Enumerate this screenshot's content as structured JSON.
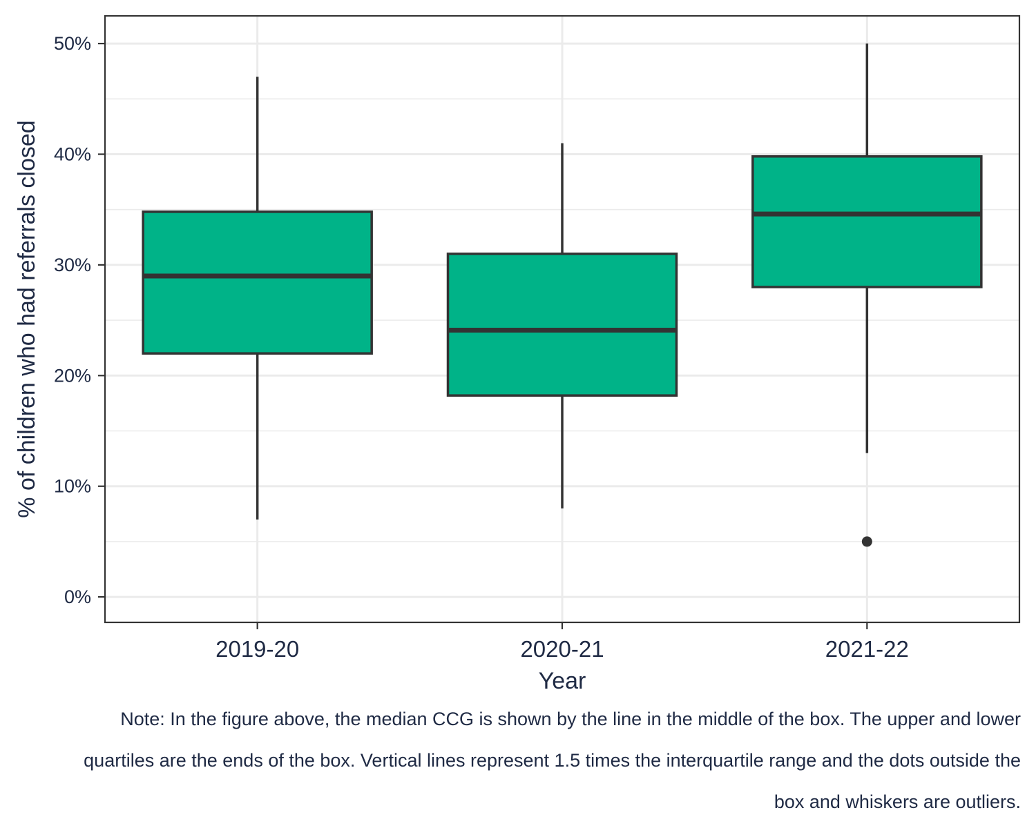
{
  "chart_data": {
    "type": "boxplot",
    "title": "",
    "xlabel": "Year",
    "ylabel": "% of children who had referrals closed",
    "ylim": [
      -2.3,
      52.5
    ],
    "yticks": [
      0,
      10,
      20,
      30,
      40,
      50
    ],
    "ytick_labels": [
      "0%",
      "10%",
      "20%",
      "30%",
      "40%",
      "50%"
    ],
    "grid": true,
    "box_color": "#00b388",
    "line_color": "#333333",
    "categories": [
      "2019-20",
      "2020-21",
      "2021-22"
    ],
    "boxes": [
      {
        "category": "2019-20",
        "whisker_low": 7.0,
        "q1": 22.0,
        "median": 29.0,
        "q3": 34.8,
        "whisker_high": 47.0,
        "outliers": []
      },
      {
        "category": "2020-21",
        "whisker_low": 8.0,
        "q1": 18.2,
        "median": 24.1,
        "q3": 31.0,
        "whisker_high": 41.0,
        "outliers": []
      },
      {
        "category": "2021-22",
        "whisker_low": 13.0,
        "q1": 28.0,
        "median": 34.6,
        "q3": 39.8,
        "whisker_high": 50.0,
        "outliers": [
          5.0
        ]
      }
    ]
  },
  "note": "Note: In the figure above, the median CCG is shown by the line in the middle of the box. The upper and lower quartiles are the ends of the box. Vertical lines represent 1.5 times the interquartile range and the dots outside the box and whiskers are outliers."
}
